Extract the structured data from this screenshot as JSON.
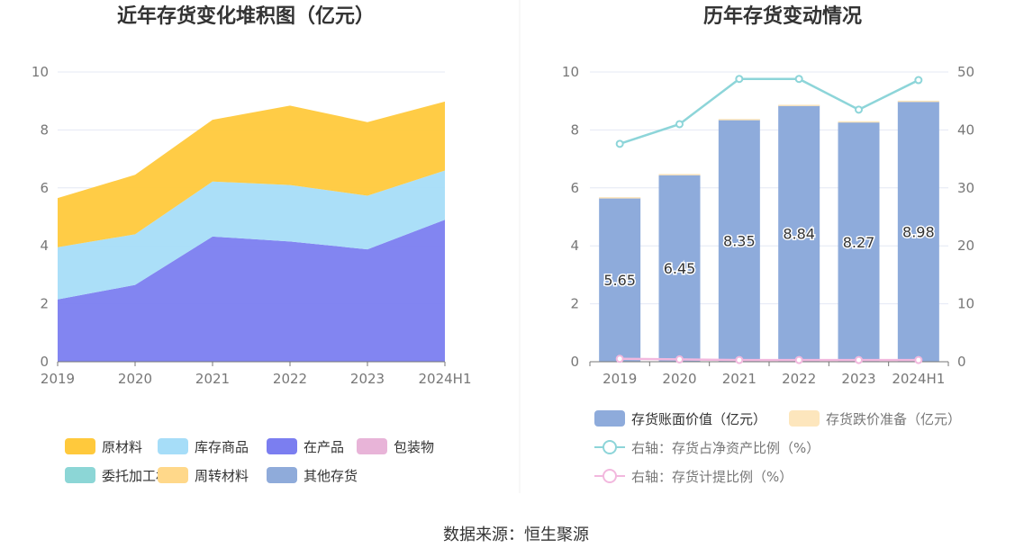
{
  "left_chart": {
    "title": "近年存货变化堆积图（亿元）"
  },
  "right_chart": {
    "title": "历年存货变动情况"
  },
  "source": "数据来源：恒生聚源",
  "chart_data": [
    {
      "type": "area",
      "stacked": true,
      "title": "近年存货变化堆积图（亿元）",
      "categories": [
        "2019",
        "2020",
        "2021",
        "2022",
        "2023",
        "2024H1"
      ],
      "ylim": [
        0,
        10
      ],
      "yticks": [
        0,
        2,
        4,
        6,
        8,
        10
      ],
      "grid": true,
      "legend_position": "bottom",
      "series": [
        {
          "name": "在产品",
          "color": "#7b7ef0",
          "values": [
            2.15,
            2.65,
            4.32,
            4.15,
            3.88,
            4.9
          ]
        },
        {
          "name": "库存商品",
          "color": "#a6ddf8",
          "values": [
            1.8,
            1.75,
            1.9,
            1.95,
            1.85,
            1.7
          ]
        },
        {
          "name": "原材料",
          "color": "#ffc93c",
          "values": [
            1.7,
            2.05,
            2.13,
            2.74,
            2.54,
            2.38
          ]
        },
        {
          "name": "包装物",
          "color": "#e8b4d8",
          "values": [
            0,
            0,
            0,
            0,
            0,
            0
          ]
        },
        {
          "name": "委托加工材料",
          "color": "#8cd6d6",
          "values": [
            0,
            0,
            0,
            0,
            0,
            0
          ]
        },
        {
          "name": "周转材料",
          "color": "#ffd88a",
          "values": [
            0,
            0,
            0,
            0,
            0,
            0
          ]
        },
        {
          "name": "其他存货",
          "color": "#8fabda",
          "values": [
            0,
            0,
            0,
            0,
            0,
            0
          ]
        }
      ],
      "legend_order": [
        "原材料",
        "库存商品",
        "在产品",
        "包装物",
        "委托加工材料",
        "周转材料",
        "其他存货"
      ],
      "legend_colors": {
        "原材料": "#ffc93c",
        "库存商品": "#a6ddf8",
        "在产品": "#7b7ef0",
        "包装物": "#e8b4d8",
        "委托加工材料": "#8cd6d6",
        "周转材料": "#ffd88a",
        "其他存货": "#8fabda"
      }
    },
    {
      "type": "bar",
      "title": "历年存货变动情况",
      "categories": [
        "2019",
        "2020",
        "2021",
        "2022",
        "2023",
        "2024H1"
      ],
      "ylim": [
        0,
        10
      ],
      "yticks": [
        0,
        2,
        4,
        6,
        8,
        10
      ],
      "y2lim": [
        0,
        50
      ],
      "y2ticks": [
        0,
        10,
        20,
        30,
        40,
        50
      ],
      "grid": true,
      "legend_position": "bottom",
      "series": [
        {
          "name": "存货账面价值（亿元）",
          "kind": "bar",
          "color": "#8eabdb",
          "values": [
            5.65,
            6.45,
            8.35,
            8.84,
            8.27,
            8.98
          ],
          "labels": [
            "5.65",
            "6.45",
            "8.35",
            "8.84",
            "8.27",
            "8.98"
          ]
        },
        {
          "name": "存货跌价准备（亿元）",
          "kind": "bar",
          "color": "#fde6bd",
          "values": [
            0.03,
            0.03,
            0.03,
            0.03,
            0.03,
            0.03
          ]
        },
        {
          "name": "右轴：存货占净资产比例（%）",
          "kind": "line",
          "axis": "right",
          "color": "#8dd5d9",
          "values": [
            37.6,
            41.0,
            48.8,
            48.8,
            43.5,
            48.6
          ]
        },
        {
          "name": "右轴：存货计提比例（%）",
          "kind": "line",
          "axis": "right",
          "color": "#f2b8de",
          "values": [
            0.5,
            0.4,
            0.3,
            0.3,
            0.3,
            0.3
          ]
        }
      ]
    }
  ]
}
